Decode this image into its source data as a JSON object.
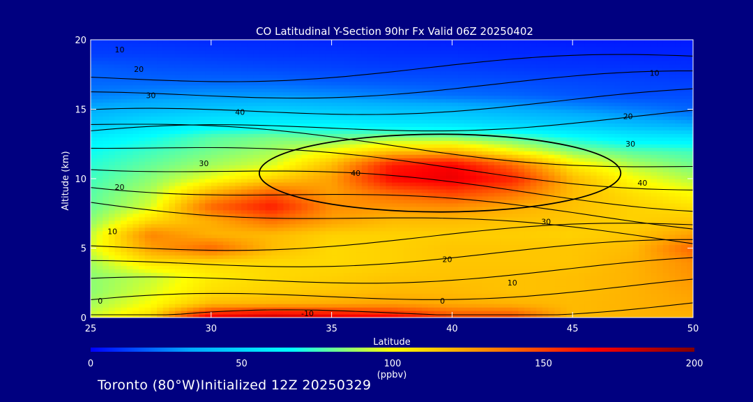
{
  "chart_data": {
    "type": "heatmap",
    "title": "CO Latitudinal Y-Section 90hr  Fx Valid 06Z 20250402",
    "xlabel": "Latitude",
    "ylabel": "Altitude (km)",
    "xlim": [
      25,
      50
    ],
    "ylim": [
      0,
      20
    ],
    "x_ticks": [
      "25",
      "30",
      "35",
      "40",
      "45",
      "50"
    ],
    "y_ticks": [
      "0",
      "5",
      "10",
      "15",
      "20"
    ],
    "colorbar": {
      "ticks": [
        "0",
        "50",
        "100",
        "150",
        "200"
      ],
      "unit": "(ppbv)",
      "range": [
        0,
        200
      ],
      "colors": [
        "#0000ff",
        "#00aaff",
        "#00ffff",
        "#ffff00",
        "#ff8000",
        "#ff0000",
        "#800000"
      ]
    },
    "field": {
      "description_units": "ppbv",
      "latitudes": [
        25,
        27.5,
        30,
        32.5,
        35,
        37.5,
        40,
        42.5,
        45,
        47.5,
        50
      ],
      "altitudes_km": [
        0,
        1,
        2,
        3,
        4,
        5,
        6,
        7,
        8,
        9,
        10,
        11,
        12,
        13,
        14,
        15,
        16,
        17,
        18,
        19,
        20
      ],
      "values": [
        [
          95,
          110,
          175,
          185,
          178,
          170,
          150,
          150,
          118,
          120,
          120
        ],
        [
          88,
          100,
          118,
          120,
          122,
          125,
          122,
          120,
          118,
          120,
          123
        ],
        [
          85,
          95,
          108,
          112,
          115,
          118,
          118,
          116,
          117,
          120,
          125
        ],
        [
          85,
          92,
          105,
          110,
          112,
          115,
          116,
          116,
          117,
          120,
          128
        ],
        [
          88,
          108,
          110,
          110,
          110,
          112,
          115,
          115,
          115,
          120,
          130
        ],
        [
          95,
          125,
          140,
          118,
          110,
          112,
          115,
          115,
          115,
          118,
          140
        ],
        [
          92,
          132,
          120,
          118,
          112,
          112,
          113,
          113,
          112,
          115,
          125
        ],
        [
          85,
          110,
          122,
          138,
          125,
          118,
          118,
          116,
          115,
          112,
          115
        ],
        [
          80,
          95,
          140,
          160,
          130,
          128,
          130,
          122,
          116,
          112,
          108
        ],
        [
          78,
          90,
          120,
          142,
          125,
          140,
          150,
          138,
          118,
          108,
          100
        ],
        [
          75,
          85,
          98,
          112,
          125,
          165,
          172,
          158,
          118,
          100,
          90
        ],
        [
          72,
          80,
          88,
          95,
          118,
          160,
          168,
          140,
          105,
          90,
          82
        ],
        [
          68,
          75,
          82,
          88,
          100,
          115,
          118,
          100,
          85,
          78,
          75
        ],
        [
          60,
          68,
          78,
          82,
          80,
          85,
          84,
          78,
          68,
          60,
          58
        ],
        [
          45,
          55,
          60,
          62,
          62,
          58,
          55,
          50,
          45,
          38,
          32
        ],
        [
          35,
          40,
          45,
          48,
          45,
          42,
          40,
          35,
          30,
          25,
          20
        ],
        [
          25,
          28,
          30,
          30,
          28,
          25,
          22,
          20,
          17,
          15,
          15
        ],
        [
          20,
          20,
          20,
          20,
          18,
          17,
          16,
          15,
          14,
          13,
          12
        ],
        [
          18,
          16,
          15,
          14,
          13,
          12,
          12,
          11,
          10,
          10,
          9
        ],
        [
          12,
          12,
          11,
          10,
          10,
          9,
          9,
          8,
          8,
          7,
          7
        ],
        [
          10,
          9,
          8,
          8,
          7,
          7,
          6,
          6,
          5,
          5,
          5
        ]
      ]
    },
    "contour_labels": [
      "10",
      "20",
      "30",
      "40",
      "40",
      "30",
      "20",
      "10",
      "0",
      "-10",
      "0",
      "10",
      "20",
      "30",
      "40",
      "30",
      "20",
      "10"
    ],
    "contour_values": [
      -10,
      0,
      10,
      20,
      30,
      40
    ]
  },
  "footer": "Toronto (80°W)Initialized 12Z 20250329"
}
